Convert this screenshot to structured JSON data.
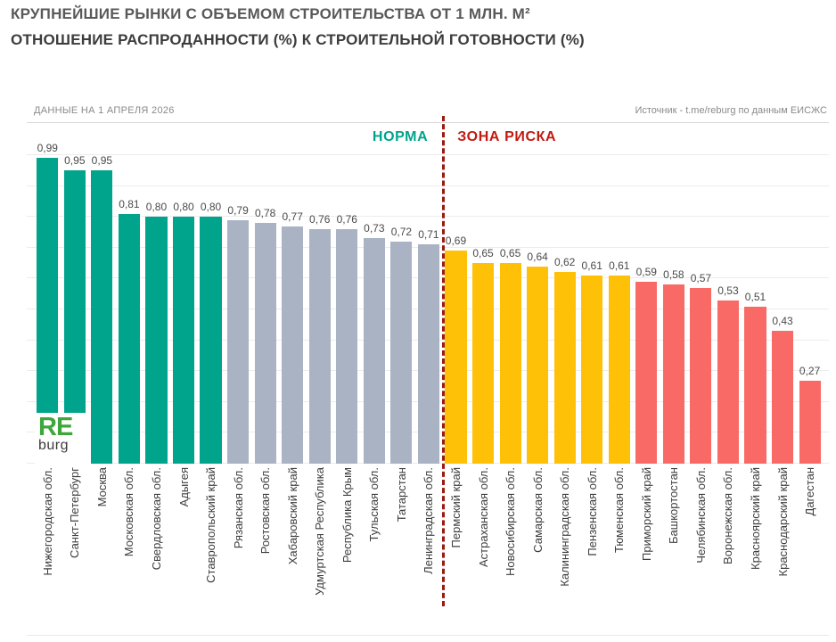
{
  "chart_data": {
    "type": "bar",
    "title": "КРУПНЕЙШИЕ РЫНКИ С ОБЪЕМОМ СТРОИТЕЛЬСТВА ОТ 1 МЛН. М²",
    "subtitle": "ОТНОШЕНИЕ РАСПРОДАННОСТИ (%) К СТРОИТЕЛЬНОЙ ГОТОВНОСТИ (%)",
    "data_note": "ДАННЫЕ НА 1 АПРЕЛЯ 2026",
    "source": "Источник - t.me/reburg по данным ЕИСЖС",
    "zone_labels": {
      "norm": "НОРМА",
      "risk": "ЗОНА РИСКА"
    },
    "divider_after_index": 15,
    "ylim": [
      0,
      1.1
    ],
    "gridlines": {
      "step": 0.1,
      "max": 1.0,
      "visible": true
    },
    "legend_position": "none",
    "palette": {
      "norm_strong": "#00a48d",
      "norm_weak": "#a9b3c3",
      "risk_moderate": "#ffc107",
      "risk_high": "#f96a66",
      "divider": "#9b1b10",
      "norm_label": "#00a48d",
      "risk_label": "#c21a12"
    },
    "bars": [
      {
        "category": "Нижегородская обл.",
        "value": 0.99,
        "label": "0,99",
        "color": "norm_strong"
      },
      {
        "category": "Санкт-Петербург",
        "value": 0.95,
        "label": "0,95",
        "color": "norm_strong"
      },
      {
        "category": "Москва",
        "value": 0.95,
        "label": "0,95",
        "color": "norm_strong"
      },
      {
        "category": "Московская обл.",
        "value": 0.81,
        "label": "0,81",
        "color": "norm_strong"
      },
      {
        "category": "Свердловская обл.",
        "value": 0.8,
        "label": "0,80",
        "color": "norm_strong"
      },
      {
        "category": "Адыгея",
        "value": 0.8,
        "label": "0,80",
        "color": "norm_strong"
      },
      {
        "category": "Ставропольский край",
        "value": 0.8,
        "label": "0,80",
        "color": "norm_strong"
      },
      {
        "category": "Рязанская обл.",
        "value": 0.79,
        "label": "0,79",
        "color": "norm_weak"
      },
      {
        "category": "Ростовская обл.",
        "value": 0.78,
        "label": "0,78",
        "color": "norm_weak"
      },
      {
        "category": "Хабаровский край",
        "value": 0.77,
        "label": "0,77",
        "color": "norm_weak"
      },
      {
        "category": "Удмуртская Республика",
        "value": 0.76,
        "label": "0,76",
        "color": "norm_weak"
      },
      {
        "category": "Республика Крым",
        "value": 0.76,
        "label": "0,76",
        "color": "norm_weak"
      },
      {
        "category": "Тульская обл.",
        "value": 0.73,
        "label": "0,73",
        "color": "norm_weak"
      },
      {
        "category": "Татарстан",
        "value": 0.72,
        "label": "0,72",
        "color": "norm_weak"
      },
      {
        "category": "Ленинградская обл.",
        "value": 0.71,
        "label": "0,71",
        "color": "norm_weak"
      },
      {
        "category": "Пермский край",
        "value": 0.69,
        "label": "0,69",
        "color": "risk_moderate"
      },
      {
        "category": "Астраханская обл.",
        "value": 0.65,
        "label": "0,65",
        "color": "risk_moderate"
      },
      {
        "category": "Новосибирская обл.",
        "value": 0.65,
        "label": "0,65",
        "color": "risk_moderate"
      },
      {
        "category": "Самарская обл.",
        "value": 0.64,
        "label": "0,64",
        "color": "risk_moderate"
      },
      {
        "category": "Калининградская обл.",
        "value": 0.62,
        "label": "0,62",
        "color": "risk_moderate"
      },
      {
        "category": "Пензенская обл.",
        "value": 0.61,
        "label": "0,61",
        "color": "risk_moderate"
      },
      {
        "category": "Тюменская обл.",
        "value": 0.61,
        "label": "0,61",
        "color": "risk_moderate"
      },
      {
        "category": "Приморский край",
        "value": 0.59,
        "label": "0,59",
        "color": "risk_high"
      },
      {
        "category": "Башкортостан",
        "value": 0.58,
        "label": "0,58",
        "color": "risk_high"
      },
      {
        "category": "Челябинская обл.",
        "value": 0.57,
        "label": "0,57",
        "color": "risk_high"
      },
      {
        "category": "Воронежская обл.",
        "value": 0.53,
        "label": "0,53",
        "color": "risk_high"
      },
      {
        "category": "Красноярский край",
        "value": 0.51,
        "label": "0,51",
        "color": "risk_high"
      },
      {
        "category": "Краснодарский край",
        "value": 0.43,
        "label": "0,43",
        "color": "risk_high"
      },
      {
        "category": "Дагестан",
        "value": 0.27,
        "label": "0,27",
        "color": "risk_high"
      }
    ],
    "logo": {
      "line1": "RE",
      "line2": "burg"
    }
  }
}
